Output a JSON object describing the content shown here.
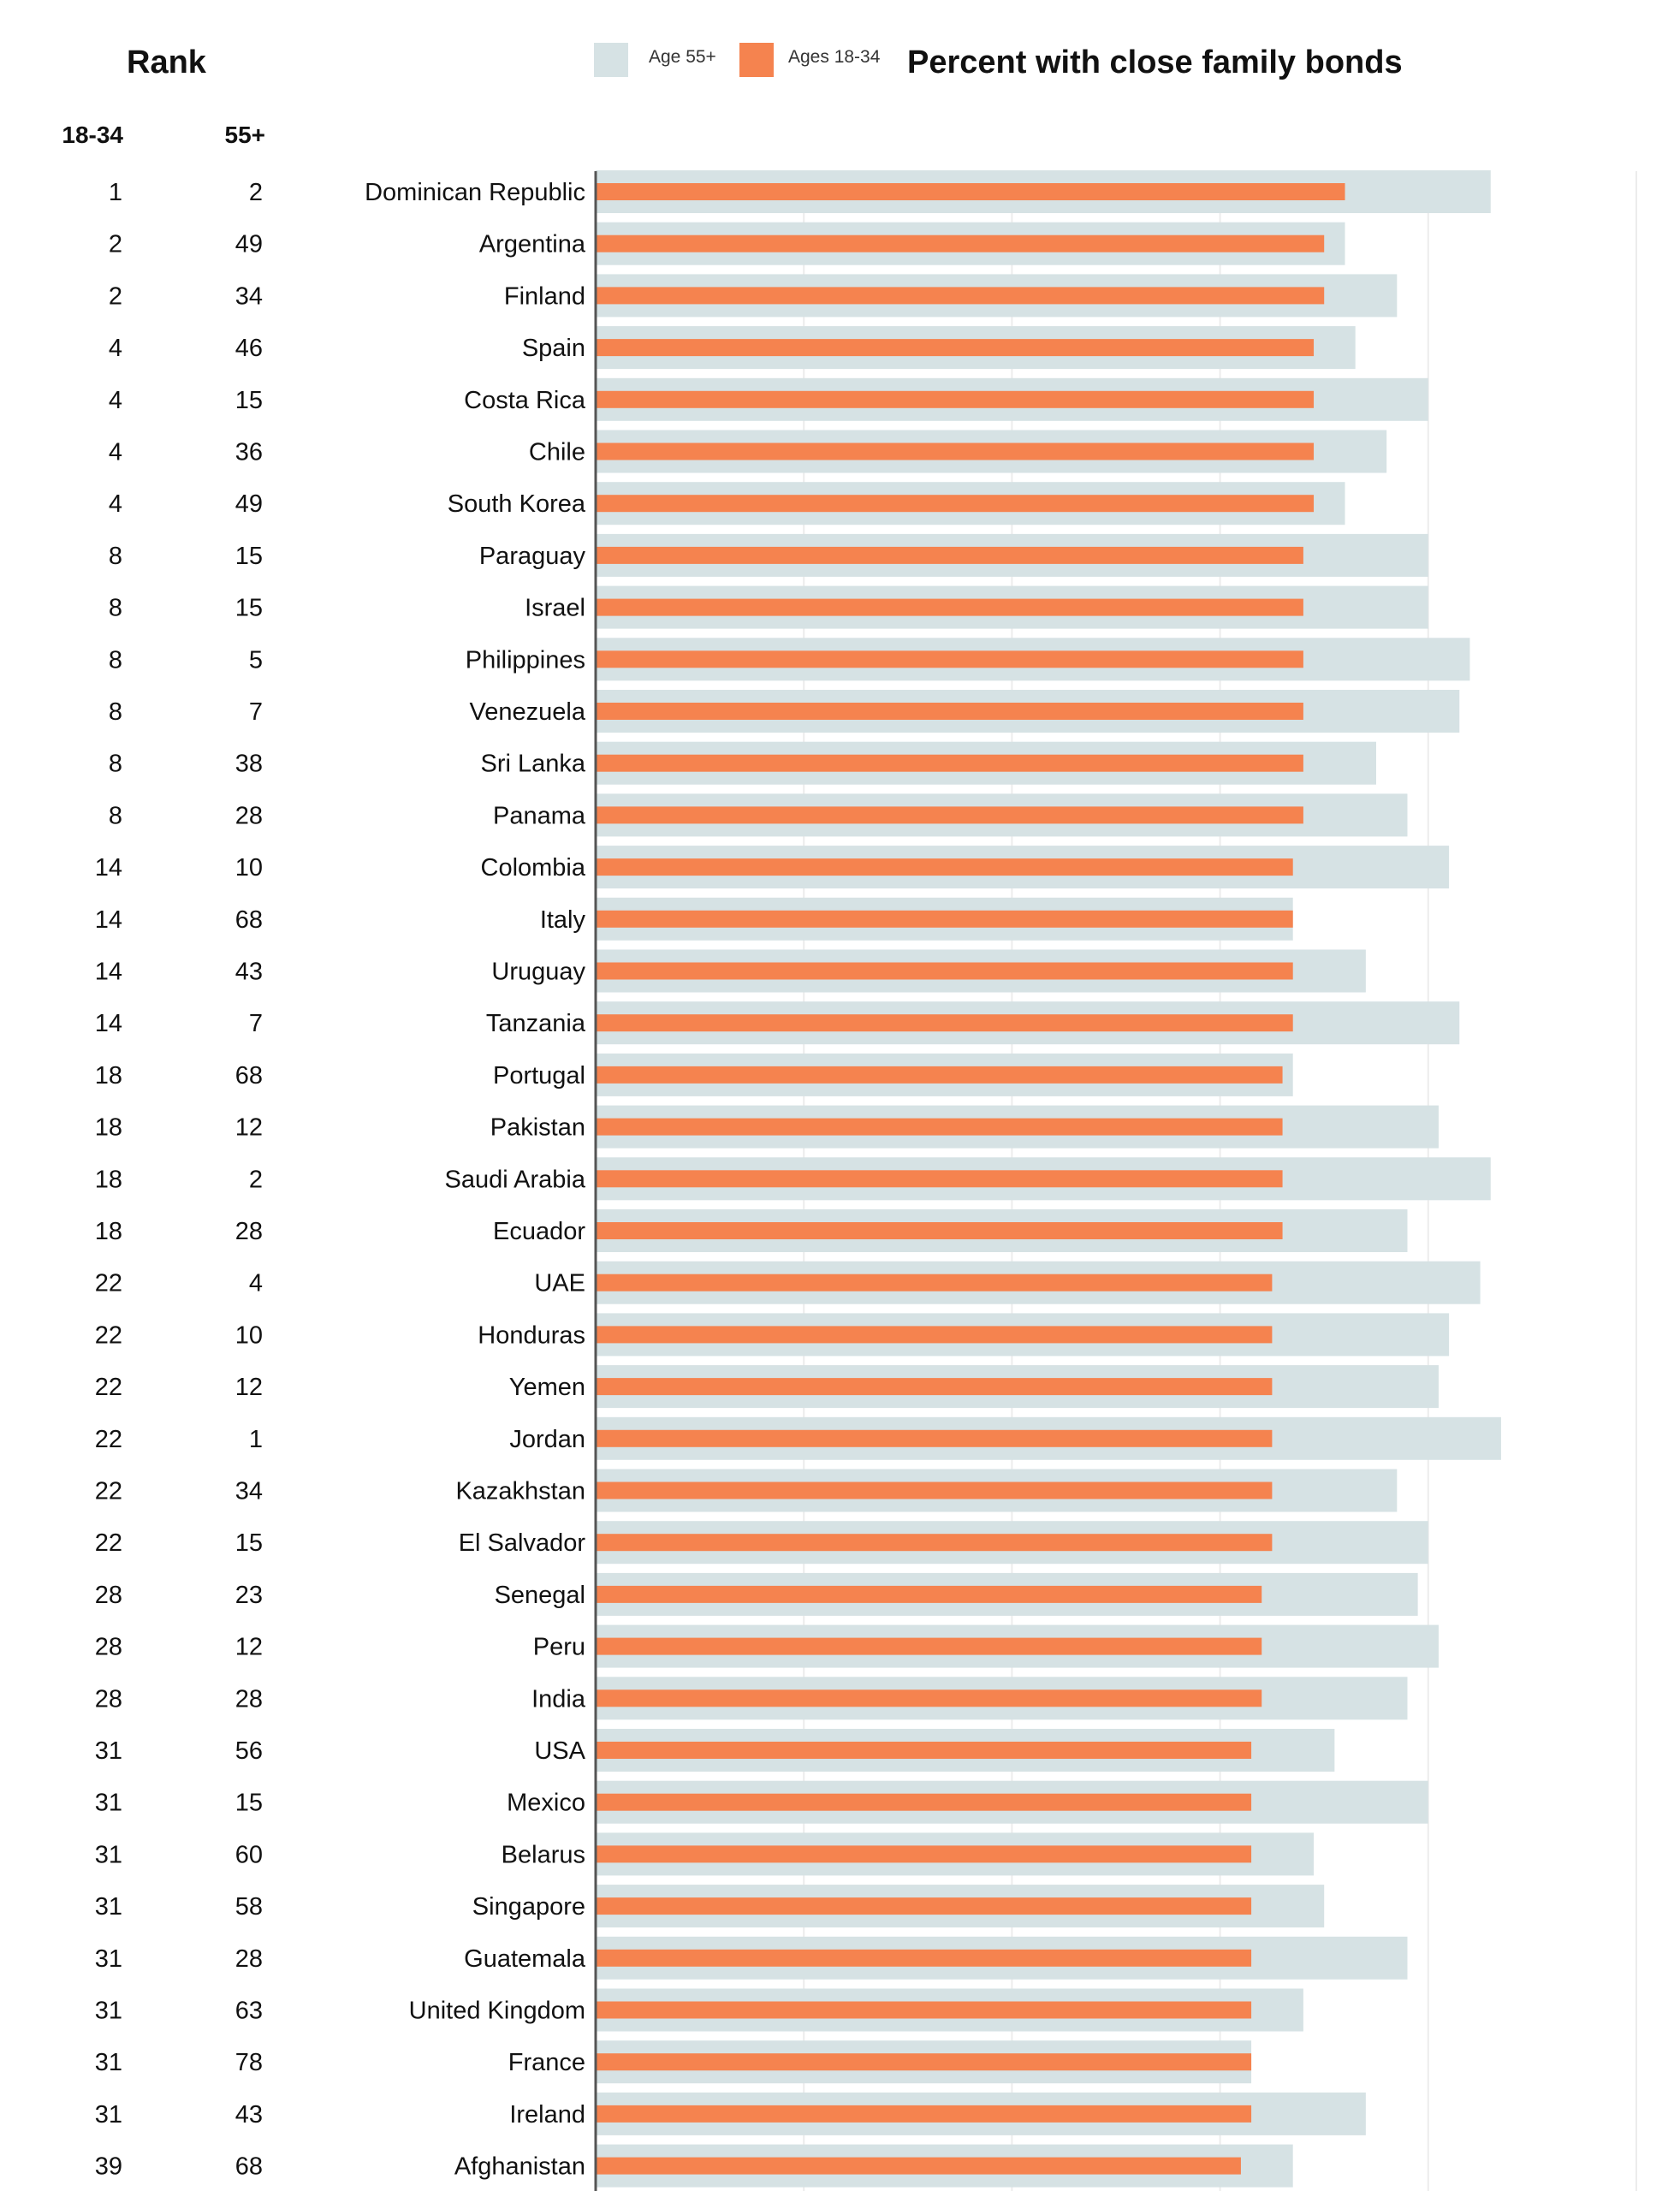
{
  "header": {
    "rank_title": "Rank",
    "rank_col_young": "18-34",
    "rank_col_old": "55+"
  },
  "legend": {
    "items": [
      {
        "label": "Age 55+",
        "color": "#d6e2e4"
      },
      {
        "label": "Ages 18-34",
        "color": "#f5834f"
      }
    ]
  },
  "chart_data": {
    "type": "bar",
    "orientation": "horizontal",
    "title": "Percent with close family bonds",
    "xlabel": "",
    "ylabel": "",
    "xlim": [
      0,
      100
    ],
    "x_gridlines": [
      20,
      40,
      60,
      80,
      100
    ],
    "grid": true,
    "legend_position": "top",
    "categories": [
      "Dominican Republic",
      "Argentina",
      "Finland",
      "Spain",
      "Costa Rica",
      "Chile",
      "South Korea",
      "Paraguay",
      "Israel",
      "Philippines",
      "Venezuela",
      "Sri Lanka",
      "Panama",
      "Colombia",
      "Italy",
      "Uruguay",
      "Tanzania",
      "Portugal",
      "Pakistan",
      "Saudi Arabia",
      "Ecuador",
      "UAE",
      "Honduras",
      "Yemen",
      "Jordan",
      "Kazakhstan",
      "El Salvador",
      "Senegal",
      "Peru",
      "India",
      "USA",
      "Mexico",
      "Belarus",
      "Singapore",
      "Guatemala",
      "United Kingdom",
      "France",
      "Ireland",
      "Afghanistan"
    ],
    "series": [
      {
        "name": "Age 55+",
        "color": "#d6e2e4",
        "values": [
          86,
          72,
          77,
          73,
          80,
          76,
          72,
          80,
          80,
          84,
          83,
          75,
          78,
          82,
          67,
          74,
          83,
          67,
          81,
          86,
          78,
          85,
          82,
          81,
          87,
          77,
          80,
          79,
          81,
          78,
          71,
          80,
          69,
          70,
          78,
          68,
          63,
          74,
          67
        ]
      },
      {
        "name": "Ages 18-34",
        "color": "#f5834f",
        "values": [
          72,
          70,
          70,
          69,
          69,
          69,
          69,
          68,
          68,
          68,
          68,
          68,
          68,
          67,
          67,
          67,
          67,
          66,
          66,
          66,
          66,
          65,
          65,
          65,
          65,
          65,
          65,
          64,
          64,
          64,
          63,
          63,
          63,
          63,
          63,
          63,
          63,
          63,
          62
        ]
      }
    ],
    "rank_18_34": [
      "1",
      "2",
      "2",
      "4",
      "4",
      "4",
      "4",
      "8",
      "8",
      "8",
      "8",
      "8",
      "8",
      "14",
      "14",
      "14",
      "14",
      "18",
      "18",
      "18",
      "18",
      "22",
      "22",
      "22",
      "22",
      "22",
      "22",
      "28",
      "28",
      "28",
      "31",
      "31",
      "31",
      "31",
      "31",
      "31",
      "31",
      "31",
      "39"
    ],
    "rank_55_plus": [
      "2",
      "49",
      "34",
      "46",
      "15",
      "36",
      "49",
      "15",
      "15",
      "5",
      "7",
      "38",
      "28",
      "10",
      "68",
      "43",
      "7",
      "68",
      "12",
      "2",
      "28",
      "4",
      "10",
      "12",
      "1",
      "34",
      "15",
      "23",
      "12",
      "28",
      "56",
      "15",
      "60",
      "58",
      "28",
      "63",
      "78",
      "43",
      "68"
    ]
  }
}
